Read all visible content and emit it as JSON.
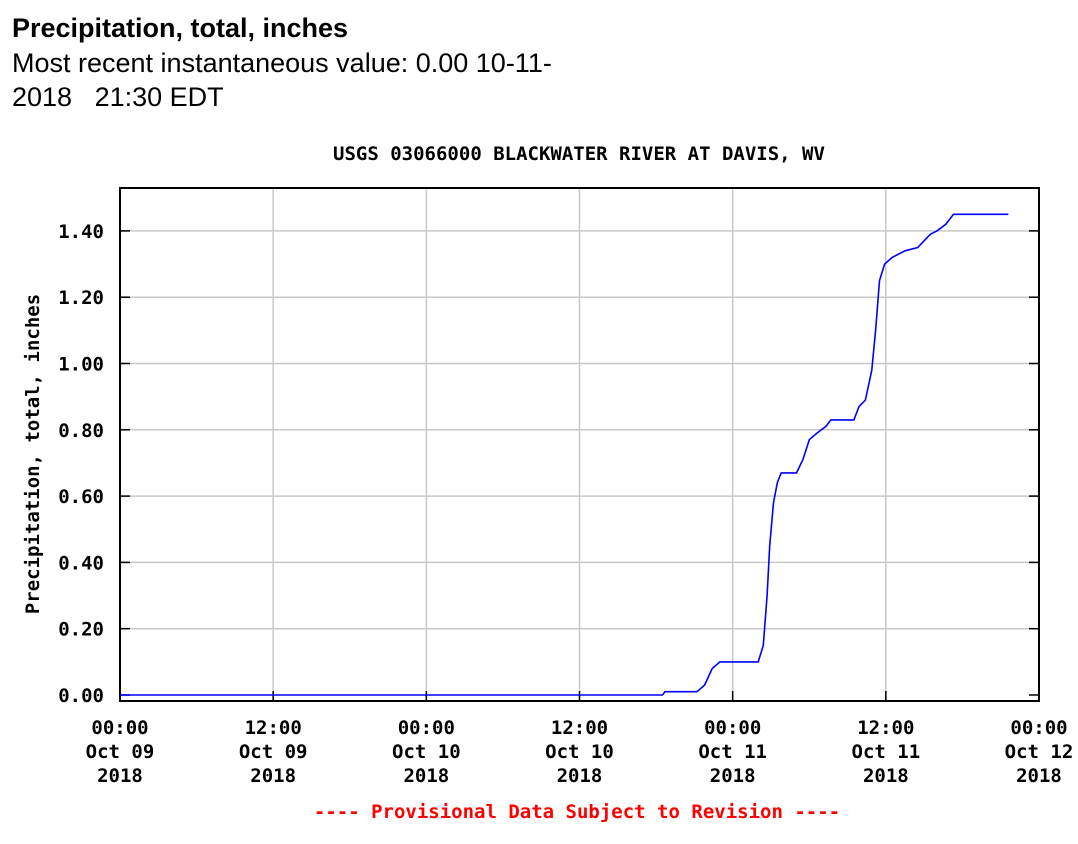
{
  "header": {
    "title": "Precipitation, total, inches",
    "recent_line1": "Most recent instantaneous value: 0.00 10-11-",
    "recent_line2": "2018   21:30 EDT"
  },
  "chart_data": {
    "type": "line",
    "title": "USGS 03066000 BLACKWATER RIVER AT DAVIS, WV",
    "ylabel": "Precipitation, total, inches",
    "xlabel": "",
    "footer": "---- Provisional Data Subject to Revision ----",
    "ylim": [
      0,
      1.5
    ],
    "xlim_hours": [
      0,
      72
    ],
    "grid": true,
    "y_ticks": [
      {
        "value": 0.0,
        "label": "0.00"
      },
      {
        "value": 0.2,
        "label": "0.20"
      },
      {
        "value": 0.4,
        "label": "0.40"
      },
      {
        "value": 0.6,
        "label": "0.60"
      },
      {
        "value": 0.8,
        "label": "0.80"
      },
      {
        "value": 1.0,
        "label": "1.00"
      },
      {
        "value": 1.2,
        "label": "1.20"
      },
      {
        "value": 1.4,
        "label": "1.40"
      }
    ],
    "x_ticks": [
      {
        "hour": 0,
        "lines": [
          "00:00",
          "Oct 09",
          "2018"
        ]
      },
      {
        "hour": 12,
        "lines": [
          "12:00",
          "Oct 09",
          "2018"
        ]
      },
      {
        "hour": 24,
        "lines": [
          "00:00",
          "Oct 10",
          "2018"
        ]
      },
      {
        "hour": 36,
        "lines": [
          "12:00",
          "Oct 10",
          "2018"
        ]
      },
      {
        "hour": 48,
        "lines": [
          "00:00",
          "Oct 11",
          "2018"
        ]
      },
      {
        "hour": 60,
        "lines": [
          "12:00",
          "Oct 11",
          "2018"
        ]
      },
      {
        "hour": 72,
        "lines": [
          "00:00",
          "Oct 12",
          "2018"
        ]
      }
    ],
    "series": [
      {
        "color": "#0000ff",
        "points": [
          [
            0.0,
            0.0
          ],
          [
            42.5,
            0.0
          ],
          [
            42.7,
            0.01
          ],
          [
            45.2,
            0.01
          ],
          [
            45.8,
            0.03
          ],
          [
            46.4,
            0.08
          ],
          [
            47.0,
            0.1
          ],
          [
            50.0,
            0.1
          ],
          [
            50.4,
            0.15
          ],
          [
            50.7,
            0.3
          ],
          [
            50.9,
            0.45
          ],
          [
            51.2,
            0.58
          ],
          [
            51.5,
            0.64
          ],
          [
            51.8,
            0.67
          ],
          [
            53.0,
            0.67
          ],
          [
            53.5,
            0.71
          ],
          [
            54.0,
            0.77
          ],
          [
            54.6,
            0.79
          ],
          [
            55.3,
            0.81
          ],
          [
            55.7,
            0.83
          ],
          [
            57.5,
            0.83
          ],
          [
            57.9,
            0.87
          ],
          [
            58.4,
            0.89
          ],
          [
            58.9,
            0.98
          ],
          [
            59.2,
            1.1
          ],
          [
            59.5,
            1.25
          ],
          [
            59.9,
            1.3
          ],
          [
            60.5,
            1.32
          ],
          [
            61.5,
            1.34
          ],
          [
            62.5,
            1.35
          ],
          [
            63.0,
            1.37
          ],
          [
            63.5,
            1.39
          ],
          [
            64.0,
            1.4
          ],
          [
            64.7,
            1.42
          ],
          [
            65.3,
            1.45
          ],
          [
            69.6,
            1.45
          ]
        ]
      }
    ]
  }
}
